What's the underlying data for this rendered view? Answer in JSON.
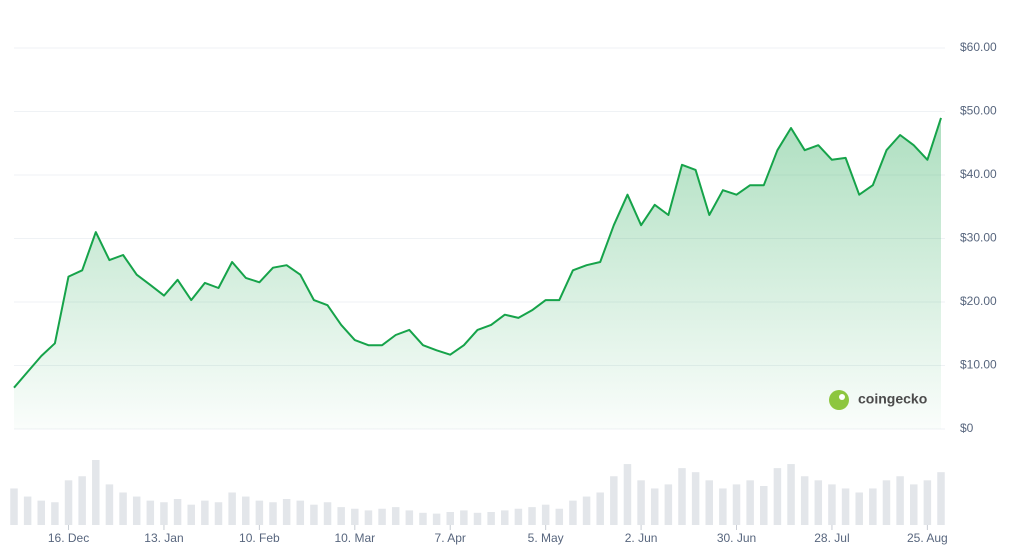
{
  "chart_data": {
    "type": "line",
    "color": "#16a34a",
    "categories": [
      null,
      null,
      null,
      null,
      "16. Dec",
      null,
      null,
      null,
      null,
      null,
      null,
      "13. Jan",
      null,
      null,
      null,
      null,
      null,
      null,
      "10. Feb",
      null,
      null,
      null,
      null,
      null,
      null,
      "10. Mar",
      null,
      null,
      null,
      null,
      null,
      null,
      "7. Apr",
      null,
      null,
      null,
      null,
      null,
      null,
      "5. May",
      null,
      null,
      null,
      null,
      null,
      null,
      "2. Jun",
      null,
      null,
      null,
      null,
      null,
      null,
      "30. Jun",
      null,
      null,
      null,
      null,
      null,
      null,
      "28. Jul",
      null,
      null,
      null,
      null,
      null,
      null,
      "25. Aug",
      null
    ],
    "values": [
      6.5,
      9,
      11.5,
      13.5,
      24,
      25,
      31,
      26.6,
      27.4,
      24.3,
      22.7,
      21,
      23.5,
      20.3,
      23,
      22.2,
      26.3,
      23.8,
      23.1,
      25.4,
      25.8,
      24.3,
      20.3,
      19.5,
      16.4,
      14,
      13.2,
      13.2,
      14.8,
      15.6,
      13.2,
      12.4,
      11.7,
      13.2,
      15.6,
      16.4,
      18,
      17.5,
      18.7,
      20.3,
      20.3,
      25,
      25.8,
      26.3,
      32.1,
      36.9,
      32.1,
      35.3,
      33.7,
      41.6,
      40.8,
      33.7,
      37.6,
      36.9,
      38.4,
      38.4,
      43.9,
      47.4,
      43.9,
      44.7,
      42.4,
      42.7,
      36.9,
      38.4,
      43.9,
      46.3,
      44.7,
      42.4,
      49
    ],
    "volume": [
      45,
      35,
      30,
      28,
      55,
      60,
      80,
      50,
      40,
      35,
      30,
      28,
      32,
      25,
      30,
      28,
      40,
      35,
      30,
      28,
      32,
      30,
      25,
      28,
      22,
      20,
      18,
      20,
      22,
      18,
      15,
      14,
      16,
      18,
      15,
      16,
      18,
      20,
      22,
      25,
      20,
      30,
      35,
      40,
      60,
      75,
      55,
      45,
      50,
      70,
      65,
      55,
      45,
      50,
      55,
      48,
      70,
      75,
      60,
      55,
      50,
      45,
      40,
      45,
      55,
      60,
      50,
      55,
      65
    ],
    "volume_color": "#e3e6ea",
    "ylim": [
      0,
      60
    ],
    "yticks": [
      {
        "value": 0,
        "label": "$0"
      },
      {
        "value": 10,
        "label": "$10.00"
      },
      {
        "value": 20,
        "label": "$20.00"
      },
      {
        "value": 30,
        "label": "$30.00"
      },
      {
        "value": 40,
        "label": "$40.00"
      },
      {
        "value": 50,
        "label": "$50.00"
      },
      {
        "value": 60,
        "label": "$60.00"
      }
    ],
    "grid": true,
    "watermark": "coingecko"
  }
}
